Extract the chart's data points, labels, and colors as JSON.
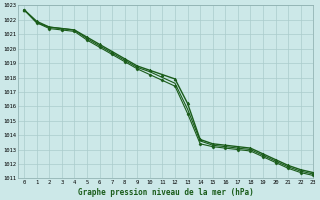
{
  "title": "Graphe pression niveau de la mer (hPa)",
  "background_color": "#cce8e8",
  "grid_color": "#aacccc",
  "line_color": "#1a5c1a",
  "xlim": [
    -0.5,
    23
  ],
  "ylim": [
    1011,
    1023
  ],
  "xticks": [
    0,
    1,
    2,
    3,
    4,
    5,
    6,
    7,
    8,
    9,
    10,
    11,
    12,
    13,
    14,
    15,
    16,
    17,
    18,
    19,
    20,
    21,
    22,
    23
  ],
  "yticks": [
    1011,
    1012,
    1013,
    1014,
    1015,
    1016,
    1017,
    1018,
    1019,
    1020,
    1021,
    1022,
    1023
  ],
  "series": [
    {
      "x": [
        0,
        1,
        2,
        3,
        4,
        5,
        6,
        7,
        8,
        9,
        10,
        11,
        12,
        13,
        14,
        15,
        16,
        17,
        18,
        19,
        20,
        21,
        22,
        23
      ],
      "y": [
        1022.7,
        1021.9,
        1021.5,
        1021.4,
        1021.3,
        1020.8,
        1020.3,
        1019.8,
        1019.3,
        1018.8,
        1018.5,
        1018.2,
        1017.9,
        1016.2,
        1013.7,
        1013.4,
        1013.3,
        1013.2,
        1013.1,
        1012.7,
        1012.3,
        1011.9,
        1011.6,
        1011.4
      ],
      "marker": "^",
      "markersize": 2.0,
      "linewidth": 1.0
    },
    {
      "x": [
        0,
        1,
        2,
        3,
        4,
        5,
        6,
        7,
        8,
        9,
        10,
        11,
        12,
        13,
        14,
        15,
        16,
        17,
        18,
        19,
        20,
        21,
        22,
        23
      ],
      "y": [
        1022.7,
        1021.8,
        1021.5,
        1021.4,
        1021.3,
        1020.7,
        1020.2,
        1019.7,
        1019.2,
        1018.7,
        1018.4,
        1018.0,
        1017.6,
        1015.8,
        1013.6,
        1013.3,
        1013.2,
        1013.1,
        1013.0,
        1012.6,
        1012.2,
        1011.8,
        1011.5,
        1011.3
      ],
      "marker": null,
      "markersize": 0,
      "linewidth": 0.8
    },
    {
      "x": [
        0,
        1,
        2,
        3,
        4,
        5,
        6,
        7,
        8,
        9,
        10,
        11,
        12,
        13,
        14,
        15,
        16,
        17,
        18,
        19,
        20,
        21,
        22,
        23
      ],
      "y": [
        1022.7,
        1021.8,
        1021.4,
        1021.3,
        1021.2,
        1020.6,
        1020.1,
        1019.6,
        1019.1,
        1018.6,
        1018.2,
        1017.8,
        1017.4,
        1015.5,
        1013.4,
        1013.2,
        1013.1,
        1013.0,
        1012.9,
        1012.5,
        1012.1,
        1011.7,
        1011.4,
        1011.2
      ],
      "marker": "D",
      "markersize": 1.5,
      "linewidth": 0.8
    }
  ]
}
